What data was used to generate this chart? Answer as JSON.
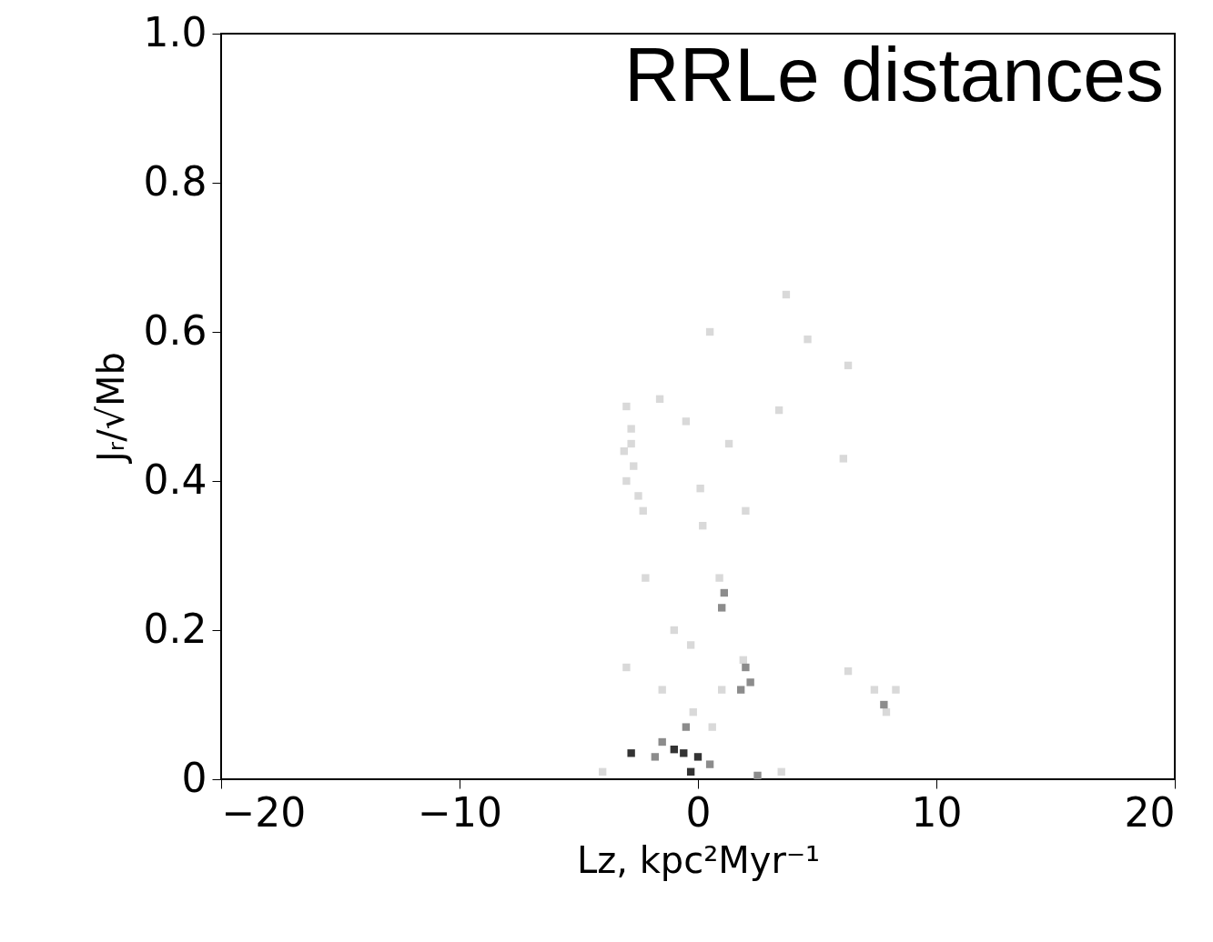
{
  "chart_data": {
    "type": "scatter",
    "xlabel": "Lz, kpc²Myr⁻¹",
    "ylabel": "Jᵣ/√Mb",
    "marker": "square",
    "grid": false,
    "annotations": [
      "RRLe distances"
    ],
    "xlim": [
      -20,
      20
    ],
    "ylim": [
      0,
      1.0
    ],
    "xticks": [
      {
        "value": -20,
        "label": "−20"
      },
      {
        "value": -10,
        "label": "−10"
      },
      0,
      10,
      20
    ],
    "yticks": [
      0,
      0.2,
      0.4,
      0.6,
      {
        "value": 0.8,
        "label": "0.8"
      },
      {
        "value": 1.0,
        "label": "1.0"
      }
    ],
    "series": [
      {
        "color": "#d9d9d9",
        "x": [
          3.7,
          0.5,
          4.6,
          6.3,
          3.4,
          6.1,
          -1.6,
          -0.5,
          1.3,
          0.1,
          0.2,
          2.0,
          -2.2,
          6.3,
          -3.0,
          -1.0,
          -0.3,
          -1.5,
          1.0,
          -3.0,
          -2.8,
          -3.1,
          -2.7,
          -3.0,
          -2.5,
          -2.3,
          -2.8,
          0.9,
          1.9,
          7.4,
          8.3,
          7.9,
          -4.0,
          3.5,
          -0.2,
          0.6
        ],
        "values": [
          0.65,
          0.6,
          0.59,
          0.555,
          0.495,
          0.43,
          0.51,
          0.48,
          0.45,
          0.39,
          0.34,
          0.36,
          0.27,
          0.145,
          0.15,
          0.2,
          0.18,
          0.12,
          0.12,
          0.5,
          0.47,
          0.44,
          0.42,
          0.4,
          0.38,
          0.36,
          0.45,
          0.27,
          0.16,
          0.12,
          0.12,
          0.09,
          0.01,
          0.01,
          0.09,
          0.07
        ]
      },
      {
        "color": "#8c8c8c",
        "x": [
          1.1,
          1.0,
          2.0,
          2.2,
          1.8,
          7.8,
          -1.5,
          0.5,
          2.5,
          -0.5,
          -1.8
        ],
        "values": [
          0.25,
          0.23,
          0.15,
          0.13,
          0.12,
          0.1,
          0.05,
          0.02,
          0.005,
          0.07,
          0.03
        ]
      },
      {
        "color": "#333333",
        "x": [
          -2.8,
          -1.0,
          -0.6,
          0.0,
          -0.3
        ],
        "values": [
          0.035,
          0.04,
          0.035,
          0.03,
          0.01
        ]
      }
    ]
  }
}
